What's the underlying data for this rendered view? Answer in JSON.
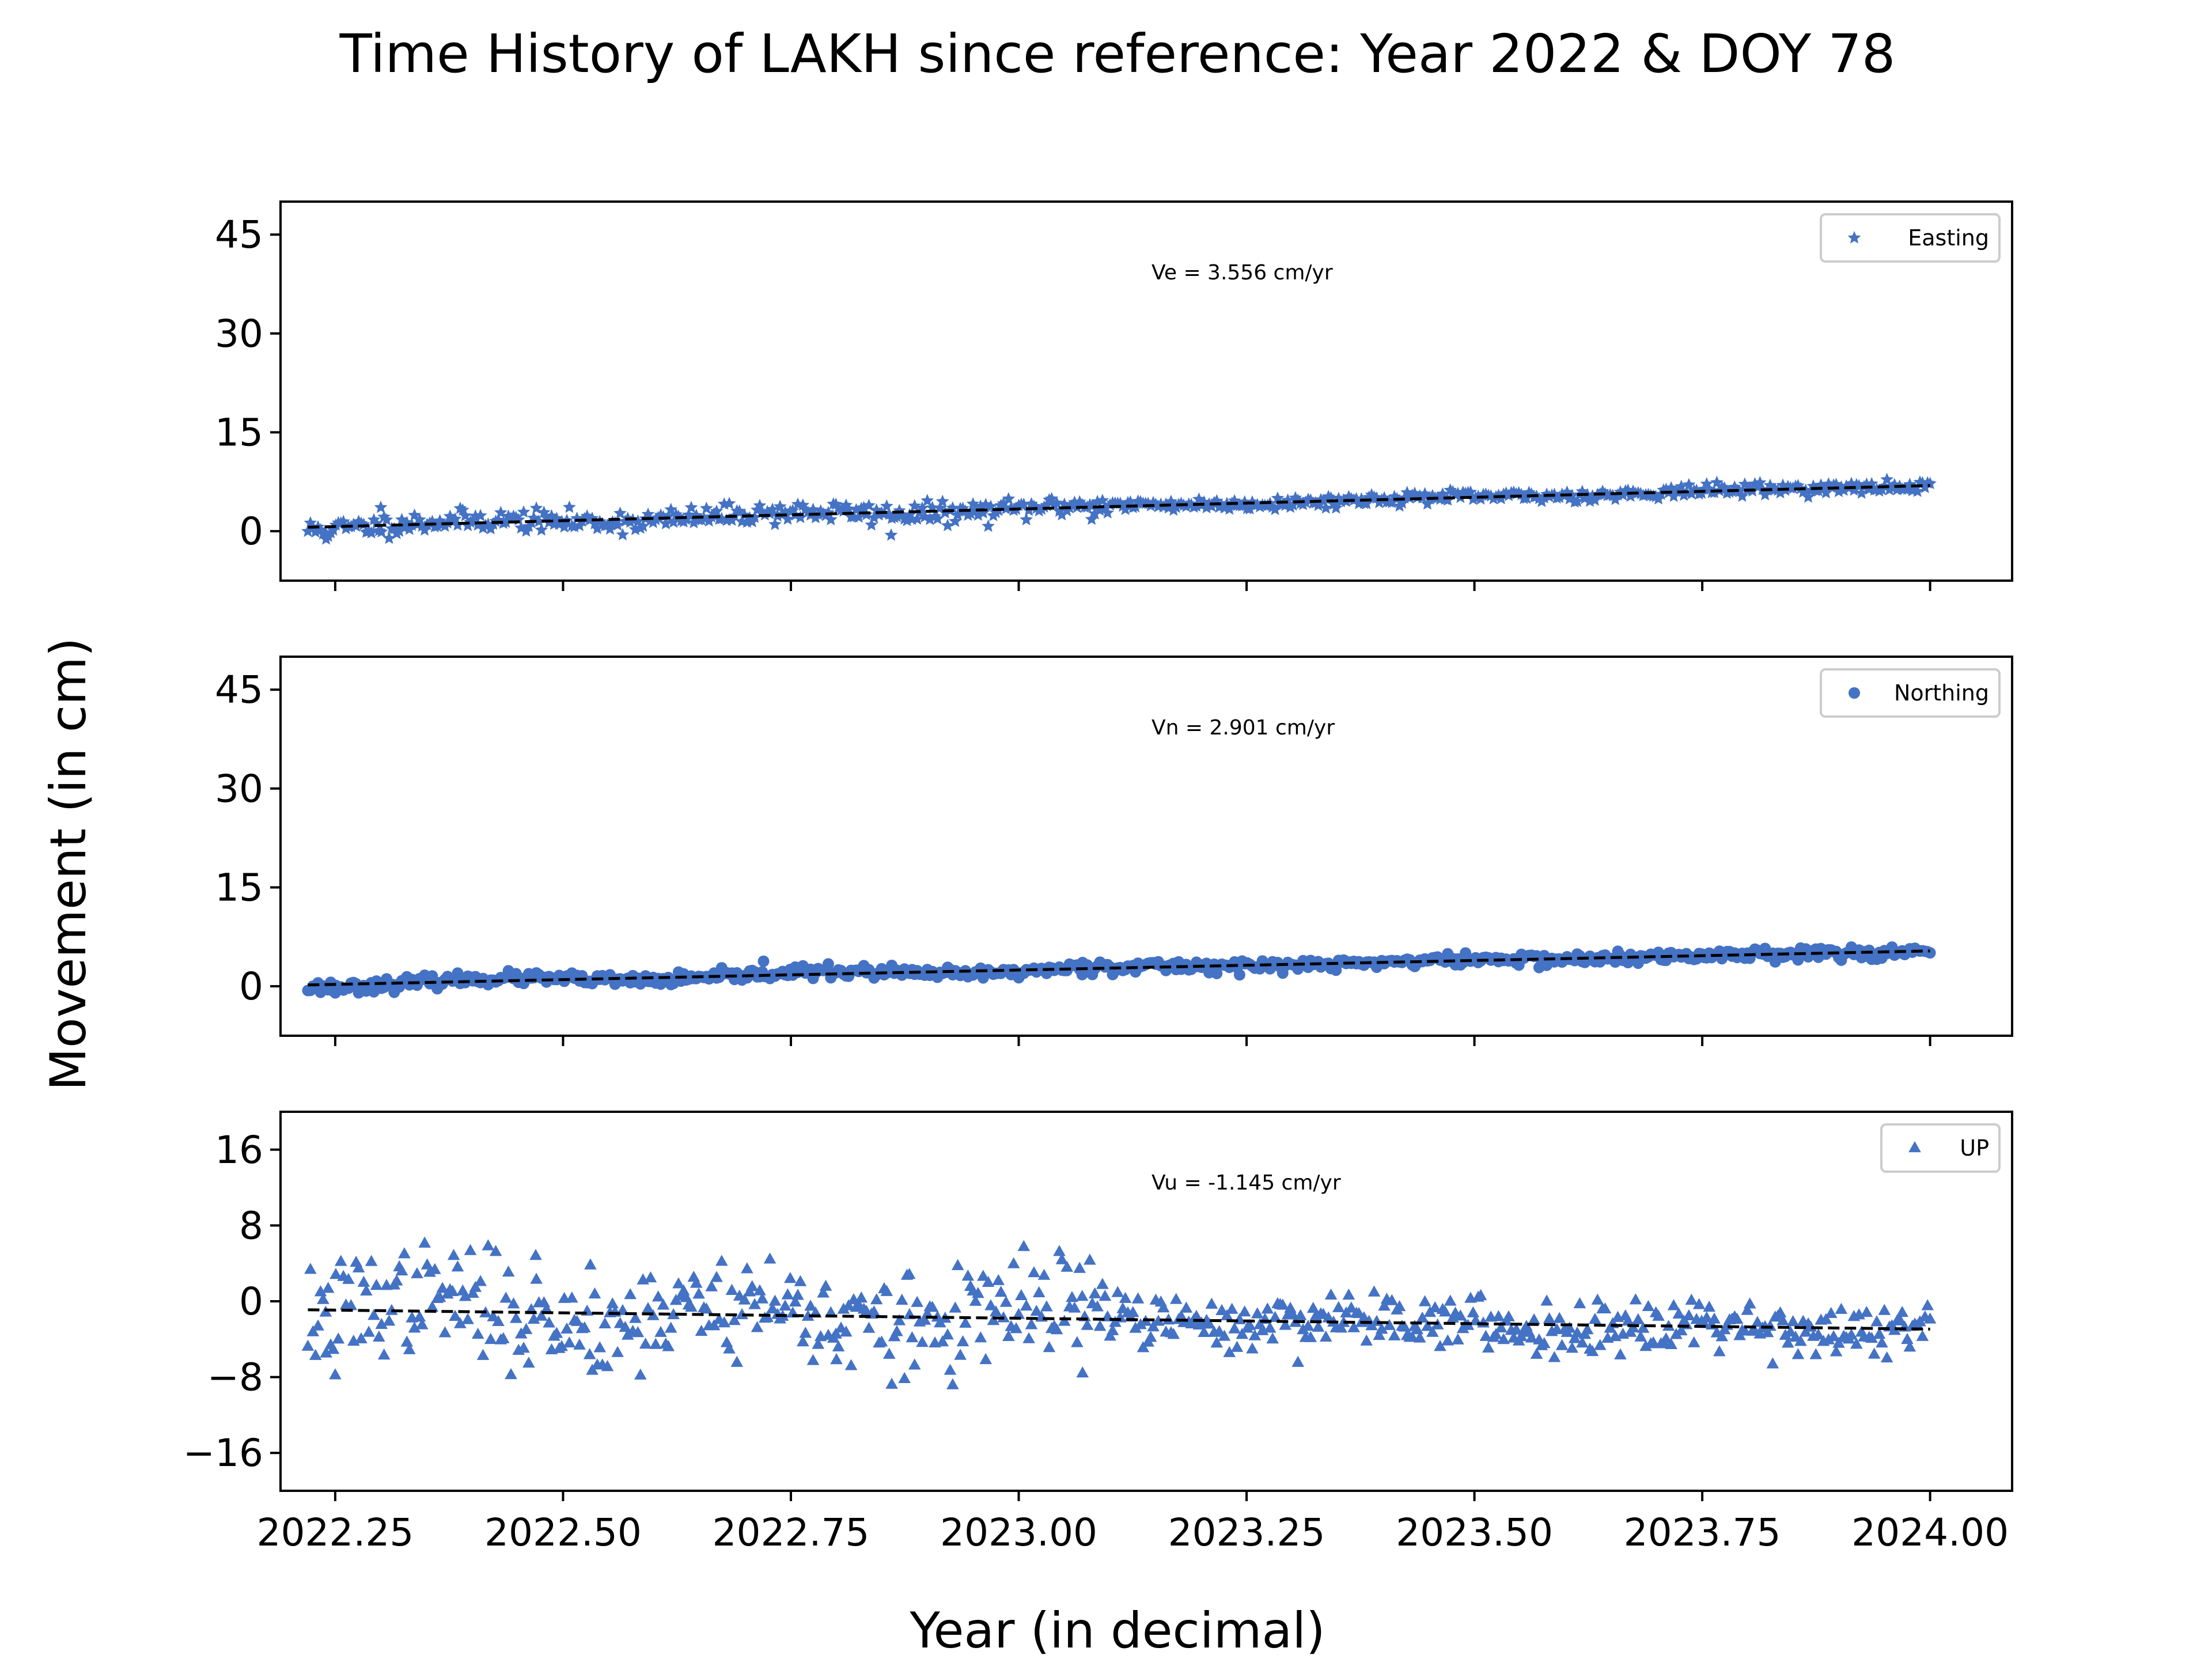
{
  "figure": {
    "title": "Time History of LAKH since reference: Year 2022 & DOY 78",
    "xlabel": "Year (in decimal)",
    "ylabel": "Movement (in cm)"
  },
  "colors": {
    "points": "#4472c4",
    "trend": "#000000",
    "axes": "#000000"
  },
  "chart_data": [
    {
      "type": "scatter",
      "component": "easting",
      "legend": "Easting",
      "marker": "star",
      "velocity_label": "Ve =  3.556 cm/yr",
      "xlim": [
        2022.19,
        2024.09
      ],
      "ylim": [
        -7.5,
        50
      ],
      "yticks": [
        0,
        15,
        30,
        45
      ],
      "xticks": [
        2022.25,
        2022.5,
        2022.75,
        2023.0,
        2023.25,
        2023.5,
        2023.75,
        2024.0
      ],
      "x_start": 2022.22,
      "x_end": 2024.0,
      "trend": {
        "slope": 3.556,
        "intercept_at_start": 0.6
      },
      "noise": 0.8,
      "seed": 11,
      "outliers": [
        [
          2022.24,
          -1.2
        ],
        [
          2022.86,
          -0.6
        ],
        [
          2023.08,
          1.8
        ],
        [
          2022.3,
          3.6
        ]
      ],
      "grid": false,
      "legend_position": "upper right"
    },
    {
      "type": "scatter",
      "component": "northing",
      "legend": "Northing",
      "marker": "circle",
      "velocity_label": "Vn =  2.901 cm/yr",
      "xlim": [
        2022.19,
        2024.09
      ],
      "ylim": [
        -7.5,
        50
      ],
      "yticks": [
        0,
        15,
        30,
        45
      ],
      "xticks": [
        2022.25,
        2022.5,
        2022.75,
        2023.0,
        2023.25,
        2023.5,
        2023.75,
        2024.0
      ],
      "x_start": 2022.22,
      "x_end": 2024.0,
      "trend": {
        "slope": 2.901,
        "intercept_at_start": 0.2
      },
      "noise": 0.45,
      "seed": 23,
      "outliers": [
        [
          2022.25,
          -1.0
        ],
        [
          2022.72,
          3.8
        ],
        [
          2023.07,
          3.6
        ]
      ],
      "grid": false,
      "legend_position": "upper right"
    },
    {
      "type": "scatter",
      "component": "up",
      "legend": "UP",
      "marker": "triangle",
      "velocity_label": "Vu = -1.145 cm/yr",
      "xlim": [
        2022.19,
        2024.09
      ],
      "ylim": [
        -20,
        20
      ],
      "yticks": [
        -16,
        -8,
        0,
        8,
        16
      ],
      "xticks": [
        2022.25,
        2022.5,
        2022.75,
        2023.0,
        2023.25,
        2023.5,
        2023.75,
        2024.0
      ],
      "xticklabels": [
        "2022.25",
        "2022.50",
        "2022.75",
        "2023.00",
        "2023.25",
        "2023.50",
        "2023.75",
        "2024.00"
      ],
      "x_start": 2022.22,
      "x_end": 2024.0,
      "trend": {
        "slope": -1.145,
        "intercept_at_start": -0.9
      },
      "noise": 2.0,
      "seed": 37,
      "outliers": [
        [
          2022.25,
          -7.8
        ],
        [
          2022.38,
          4.8
        ],
        [
          2022.47,
          4.8
        ],
        [
          2022.53,
          3.8
        ],
        [
          2022.88,
          2.8
        ],
        [
          2023.07,
          -7.6
        ],
        [
          2022.8,
          -6.2
        ],
        [
          2022.24,
          -5.5
        ]
      ],
      "grid": false,
      "legend_position": "upper right"
    }
  ]
}
